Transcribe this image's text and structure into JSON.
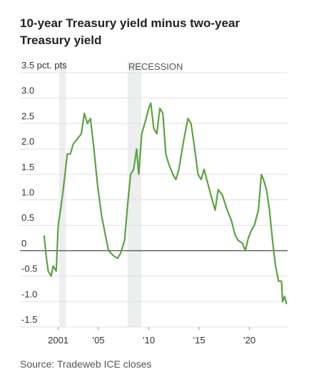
{
  "chart_data": {
    "type": "line",
    "title": "10-year Treasury yield minus two-year Treasury yield",
    "source": "Source: Tradeweb ICE closes",
    "annotation": "RECESSION",
    "recessions": [
      [
        2001.1,
        2001.75
      ],
      [
        2007.9,
        2009.25
      ]
    ],
    "x": [
      1999.6,
      1999.8,
      2000.0,
      2000.3,
      2000.5,
      2000.8,
      2001.0,
      2001.3,
      2001.5,
      2001.9,
      2002.2,
      2002.5,
      2002.9,
      2003.3,
      2003.6,
      2003.9,
      2004.2,
      2004.5,
      2004.9,
      2005.3,
      2005.7,
      2006.0,
      2006.5,
      2006.9,
      2007.2,
      2007.6,
      2007.9,
      2008.2,
      2008.5,
      2008.8,
      2009.0,
      2009.3,
      2009.6,
      2010.0,
      2010.2,
      2010.5,
      2010.8,
      2011.1,
      2011.4,
      2011.7,
      2012.0,
      2012.4,
      2012.7,
      2013.0,
      2013.5,
      2013.9,
      2014.2,
      2014.5,
      2014.9,
      2015.2,
      2015.5,
      2015.9,
      2016.3,
      2016.6,
      2016.9,
      2017.3,
      2017.8,
      2018.2,
      2018.6,
      2018.9,
      2019.3,
      2019.6,
      2019.9,
      2020.2,
      2020.5,
      2020.9,
      2021.2,
      2021.4,
      2021.7,
      2022.0,
      2022.3,
      2022.6,
      2022.9,
      2023.2,
      2023.3,
      2023.5,
      2023.7
    ],
    "series": [
      {
        "name": "10y minus 2y",
        "color": "#5ba342",
        "values": [
          0.3,
          -0.1,
          -0.4,
          -0.5,
          -0.3,
          -0.4,
          0.5,
          0.9,
          1.2,
          1.9,
          1.9,
          2.1,
          2.2,
          2.3,
          2.7,
          2.5,
          2.6,
          2.1,
          1.3,
          0.7,
          0.3,
          0.0,
          -0.1,
          -0.15,
          -0.05,
          0.2,
          0.9,
          1.5,
          1.6,
          2.0,
          1.5,
          2.3,
          2.5,
          2.8,
          2.9,
          2.4,
          2.3,
          2.8,
          2.7,
          1.9,
          1.7,
          1.5,
          1.4,
          1.6,
          2.2,
          2.6,
          2.5,
          2.1,
          1.5,
          1.4,
          1.6,
          1.3,
          1.0,
          0.8,
          1.2,
          1.1,
          0.8,
          0.6,
          0.3,
          0.2,
          0.15,
          0.0,
          0.25,
          0.4,
          0.5,
          0.8,
          1.5,
          1.4,
          1.2,
          0.8,
          0.2,
          -0.3,
          -0.6,
          -0.6,
          -1.0,
          -0.9,
          -1.05
        ]
      }
    ],
    "xlim": [
      1997.2,
      2023.8
    ],
    "xticks": [
      2001,
      {
        "value": 2005,
        "label": "’05"
      },
      {
        "value": 2010,
        "label": "’10"
      },
      {
        "value": 2015,
        "label": "’15"
      },
      {
        "value": 2020,
        "label": "’20"
      }
    ],
    "ylim": [
      -1.5,
      3.5
    ],
    "yticks": [
      {
        "value": 3.5,
        "label": "3.5 pct. pts"
      },
      {
        "value": 3,
        "label": "3.0"
      },
      2.5,
      {
        "value": 2,
        "label": "2.0"
      },
      1.5,
      {
        "value": 1,
        "label": "1.0"
      },
      0.5,
      0,
      -0.5,
      {
        "value": -1,
        "label": "-1.0"
      },
      -1.5
    ],
    "grid": true,
    "zero_line": true
  }
}
